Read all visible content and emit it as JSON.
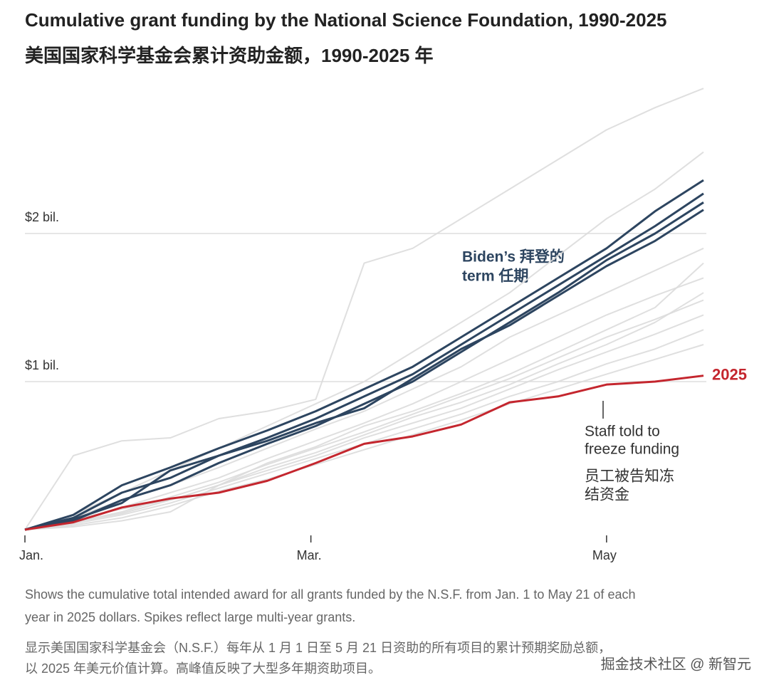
{
  "chart_data": {
    "type": "line",
    "title": "Cumulative grant funding by the National Science Foundation, 1990-2025",
    "subtitle": "美国国家科学基金会累计资助金额，1990-2025 年",
    "x": [
      0,
      10,
      20,
      30,
      40,
      50,
      60,
      70,
      80,
      90,
      100,
      110,
      120,
      130,
      140
    ],
    "xlim": [
      0,
      140
    ],
    "xticks": [
      {
        "value": 0,
        "label": "Jan."
      },
      {
        "value": 59,
        "label": "Mar."
      },
      {
        "value": 120,
        "label": "May"
      }
    ],
    "ylim": [
      0,
      3
    ],
    "yticks": [
      {
        "value": 1,
        "label": "$1 bil."
      },
      {
        "value": 2,
        "label": "$2 bil."
      }
    ],
    "grid": true,
    "series": [
      {
        "color": "#dcdcdc",
        "values": [
          0,
          0.5,
          0.6,
          0.62,
          0.75,
          0.8,
          0.88,
          1.8,
          1.9,
          2.1,
          2.3,
          2.5,
          2.7,
          2.85,
          2.98
        ]
      },
      {
        "color": "#dcdcdc",
        "values": [
          0,
          0.1,
          0.25,
          0.4,
          0.55,
          0.7,
          0.85,
          1.0,
          1.2,
          1.4,
          1.6,
          1.85,
          2.1,
          2.3,
          2.55
        ]
      },
      {
        "color": "#dcdcdc",
        "values": [
          0,
          0.08,
          0.2,
          0.3,
          0.42,
          0.55,
          0.68,
          0.8,
          0.95,
          1.1,
          1.3,
          1.45,
          1.6,
          1.75,
          1.9
        ]
      },
      {
        "color": "#dcdcdc",
        "values": [
          0,
          0.06,
          0.15,
          0.25,
          0.35,
          0.48,
          0.6,
          0.72,
          0.85,
          1.0,
          1.15,
          1.3,
          1.45,
          1.58,
          1.7
        ]
      },
      {
        "color": "#dcdcdc",
        "values": [
          0,
          0.05,
          0.12,
          0.22,
          0.32,
          0.44,
          0.55,
          0.66,
          0.78,
          0.9,
          1.02,
          1.16,
          1.3,
          1.42,
          1.55
        ]
      },
      {
        "color": "#dcdcdc",
        "values": [
          0,
          0.07,
          0.14,
          0.2,
          0.3,
          0.4,
          0.5,
          0.62,
          0.72,
          0.82,
          0.95,
          1.08,
          1.2,
          1.32,
          1.45
        ]
      },
      {
        "color": "#dcdcdc",
        "values": [
          0,
          0.04,
          0.1,
          0.18,
          0.28,
          0.38,
          0.48,
          0.58,
          0.68,
          0.78,
          0.9,
          1.0,
          1.12,
          1.22,
          1.35
        ]
      },
      {
        "color": "#dcdcdc",
        "values": [
          0,
          0.03,
          0.08,
          0.16,
          0.26,
          0.34,
          0.44,
          0.54,
          0.64,
          0.74,
          0.85,
          0.95,
          1.05,
          1.15,
          1.25
        ]
      },
      {
        "color": "#dcdcdc",
        "values": [
          0,
          0.05,
          0.11,
          0.2,
          0.3,
          0.42,
          0.52,
          0.64,
          0.76,
          0.86,
          0.98,
          1.12,
          1.25,
          1.4,
          1.6
        ]
      },
      {
        "color": "#dcdcdc",
        "values": [
          0,
          0.02,
          0.06,
          0.12,
          0.3,
          0.45,
          0.56,
          0.7,
          0.8,
          0.92,
          1.05,
          1.2,
          1.35,
          1.5,
          1.8
        ]
      },
      {
        "color": "#2d4560",
        "values": [
          0,
          0.1,
          0.3,
          0.42,
          0.55,
          0.67,
          0.8,
          0.95,
          1.1,
          1.3,
          1.5,
          1.7,
          1.9,
          2.15,
          2.36
        ]
      },
      {
        "color": "#2d4560",
        "values": [
          0,
          0.08,
          0.25,
          0.35,
          0.5,
          0.62,
          0.75,
          0.9,
          1.05,
          1.25,
          1.45,
          1.65,
          1.85,
          2.05,
          2.27
        ]
      },
      {
        "color": "#2d4560",
        "values": [
          0,
          0.06,
          0.2,
          0.3,
          0.45,
          0.58,
          0.7,
          0.85,
          1.0,
          1.2,
          1.4,
          1.6,
          1.82,
          2.0,
          2.21
        ]
      },
      {
        "color": "#2d4560",
        "values": [
          0,
          0.07,
          0.18,
          0.4,
          0.5,
          0.6,
          0.72,
          0.82,
          1.02,
          1.22,
          1.38,
          1.58,
          1.78,
          1.95,
          2.16
        ]
      },
      {
        "name": "2025",
        "color": "#c4262e",
        "values": [
          0,
          0.05,
          0.15,
          0.21,
          0.25,
          0.33,
          0.45,
          0.58,
          0.63,
          0.71,
          0.86,
          0.9,
          0.98,
          1.0,
          1.04
        ]
      }
    ],
    "biden_label": [
      "Biden’s 拜登的",
      "term 任期"
    ],
    "staff_label": [
      "Staff told to",
      "freeze funding"
    ],
    "staff_label_zh": [
      "员工被告知冻",
      "结资金"
    ],
    "notes": [
      "Shows the cumulative total intended award for all grants funded by the N.S.F. from Jan. 1 to May 21 of each",
      "year in 2025 dollars. Spikes reflect large multi-year grants."
    ],
    "notes_zh": [
      "显示美国国家科学基金会（N.S.F.）每年从 1 月 1 日至 5 月 21 日资助的所有项目的累计预期奖励总额，",
      "以 2025 年美元价值计算。高峰值反映了大型多年期资助项目。"
    ],
    "watermark": "掘金技术社区 @ 新智元"
  }
}
